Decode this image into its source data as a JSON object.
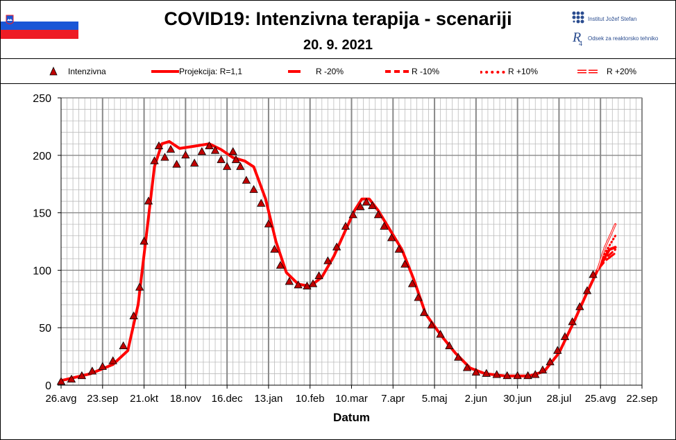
{
  "header": {
    "title": "COVID19: Intenzivna terapija - scenariji",
    "date": "20. 9. 2021",
    "logo_lines": [
      "Institut Jožef Stefan",
      "Odsek za reaktorsko tehniko"
    ]
  },
  "legend": [
    {
      "label": "Intenzivna",
      "style": "triangle"
    },
    {
      "label": "Projekcija: R=1,1",
      "style": "solid"
    },
    {
      "label": "R -20%",
      "style": "long-dash"
    },
    {
      "label": "R -10%",
      "style": "dash"
    },
    {
      "label": "R +10%",
      "style": "dot"
    },
    {
      "label": "R +20%",
      "style": "double"
    }
  ],
  "colors": {
    "series": "#ff0000",
    "marker_fill": "#c00000",
    "grid": "#bbbbbb",
    "major_grid": "#888888"
  },
  "chart_data": {
    "type": "line",
    "title": "",
    "xlabel": "Datum",
    "ylabel": "",
    "ylim": [
      0,
      250
    ],
    "yticks": [
      0,
      50,
      100,
      150,
      200,
      250
    ],
    "xticks": [
      "26.avg",
      "23.sep",
      "21.okt",
      "18.nov",
      "16.dec",
      "13.jan",
      "10.feb",
      "10.mar",
      "7.apr",
      "5.maj",
      "2.jun",
      "30.jun",
      "28.jul",
      "25.avg",
      "22.sep"
    ],
    "x_unit": "days since 26.avg 2020",
    "x_range": [
      0,
      392
    ],
    "grid": true,
    "legend_position": "top",
    "series": [
      {
        "name": "Intenzivna",
        "kind": "markers",
        "points": [
          [
            0,
            3
          ],
          [
            7,
            5
          ],
          [
            14,
            8
          ],
          [
            21,
            12
          ],
          [
            28,
            16
          ],
          [
            35,
            21
          ],
          [
            42,
            34
          ],
          [
            49,
            60
          ],
          [
            53,
            85
          ],
          [
            56,
            125
          ],
          [
            59,
            160
          ],
          [
            63,
            195
          ],
          [
            66,
            208
          ],
          [
            70,
            198
          ],
          [
            74,
            205
          ],
          [
            78,
            192
          ],
          [
            84,
            200
          ],
          [
            90,
            193
          ],
          [
            95,
            203
          ],
          [
            100,
            208
          ],
          [
            104,
            204
          ],
          [
            108,
            196
          ],
          [
            112,
            190
          ],
          [
            116,
            203
          ],
          [
            118,
            196
          ],
          [
            121,
            190
          ],
          [
            125,
            178
          ],
          [
            130,
            170
          ],
          [
            135,
            158
          ],
          [
            140,
            140
          ],
          [
            144,
            118
          ],
          [
            148,
            104
          ],
          [
            154,
            90
          ],
          [
            160,
            87
          ],
          [
            166,
            86
          ],
          [
            170,
            88
          ],
          [
            174,
            95
          ],
          [
            180,
            108
          ],
          [
            186,
            120
          ],
          [
            192,
            138
          ],
          [
            197,
            148
          ],
          [
            202,
            155
          ],
          [
            206,
            159
          ],
          [
            210,
            156
          ],
          [
            214,
            148
          ],
          [
            218,
            138
          ],
          [
            223,
            128
          ],
          [
            228,
            118
          ],
          [
            232,
            105
          ],
          [
            237,
            88
          ],
          [
            241,
            76
          ],
          [
            245,
            63
          ],
          [
            250,
            52
          ],
          [
            256,
            44
          ],
          [
            262,
            34
          ],
          [
            268,
            24
          ],
          [
            274,
            15
          ],
          [
            280,
            11
          ],
          [
            287,
            10
          ],
          [
            294,
            9
          ],
          [
            301,
            8
          ],
          [
            308,
            8
          ],
          [
            315,
            8
          ],
          [
            320,
            9
          ],
          [
            325,
            13
          ],
          [
            330,
            20
          ],
          [
            335,
            30
          ],
          [
            340,
            42
          ],
          [
            345,
            55
          ],
          [
            350,
            68
          ],
          [
            355,
            82
          ],
          [
            359,
            96
          ]
        ]
      },
      {
        "name": "Projekcija: R=1,1",
        "kind": "solid",
        "points": [
          [
            0,
            4
          ],
          [
            20,
            10
          ],
          [
            35,
            18
          ],
          [
            45,
            30
          ],
          [
            52,
            70
          ],
          [
            58,
            135
          ],
          [
            63,
            190
          ],
          [
            68,
            210
          ],
          [
            73,
            212
          ],
          [
            80,
            206
          ],
          [
            90,
            208
          ],
          [
            100,
            210
          ],
          [
            108,
            205
          ],
          [
            116,
            198
          ],
          [
            124,
            195
          ],
          [
            130,
            190
          ],
          [
            138,
            162
          ],
          [
            145,
            125
          ],
          [
            152,
            98
          ],
          [
            160,
            88
          ],
          [
            168,
            86
          ],
          [
            176,
            94
          ],
          [
            184,
            112
          ],
          [
            192,
            135
          ],
          [
            198,
            152
          ],
          [
            203,
            162
          ],
          [
            208,
            162
          ],
          [
            214,
            152
          ],
          [
            222,
            135
          ],
          [
            230,
            118
          ],
          [
            238,
            92
          ],
          [
            246,
            62
          ],
          [
            256,
            44
          ],
          [
            266,
            28
          ],
          [
            276,
            15
          ],
          [
            286,
            10
          ],
          [
            300,
            8
          ],
          [
            316,
            8
          ],
          [
            326,
            12
          ],
          [
            336,
            28
          ],
          [
            346,
            55
          ],
          [
            354,
            78
          ],
          [
            362,
            100
          ],
          [
            370,
            118
          ],
          [
            374,
            120
          ]
        ]
      },
      {
        "name": "R -20%",
        "kind": "long-dash",
        "points": [
          [
            362,
            100
          ],
          [
            367,
            108
          ],
          [
            374,
            115
          ]
        ]
      },
      {
        "name": "R -10%",
        "kind": "dash",
        "points": [
          [
            362,
            100
          ],
          [
            367,
            110
          ],
          [
            374,
            118
          ]
        ]
      },
      {
        "name": "R +10%",
        "kind": "dot",
        "points": [
          [
            362,
            100
          ],
          [
            367,
            115
          ],
          [
            374,
            130
          ]
        ]
      },
      {
        "name": "R +20%",
        "kind": "double",
        "points": [
          [
            362,
            100
          ],
          [
            367,
            120
          ],
          [
            374,
            140
          ]
        ]
      }
    ]
  }
}
